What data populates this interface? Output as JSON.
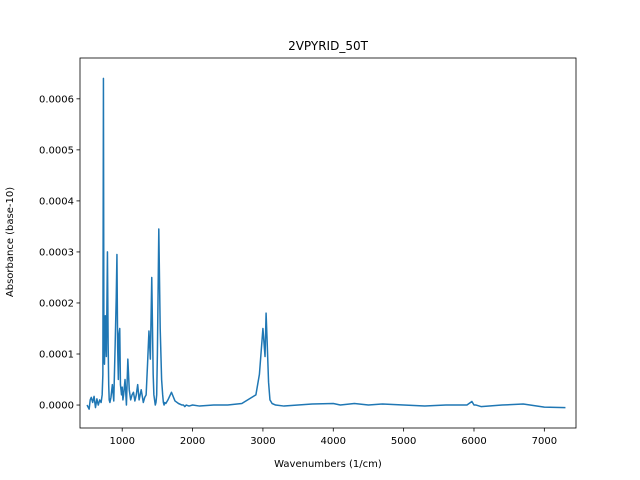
{
  "chart_data": {
    "type": "line",
    "title": "2VPYRID_50T",
    "xlabel": "Wavenumbers (1/cm)",
    "ylabel": "Absorbance (base-10)",
    "xlim": [
      400,
      7450
    ],
    "ylim": [
      -4.5e-05,
      0.00068
    ],
    "x_ticks": [
      1000,
      2000,
      3000,
      4000,
      5000,
      6000,
      7000
    ],
    "x_tick_labels": [
      "1000",
      "2000",
      "3000",
      "4000",
      "5000",
      "6000",
      "7000"
    ],
    "y_ticks": [
      0.0,
      0.0001,
      0.0002,
      0.0003,
      0.0004,
      0.0005,
      0.0006
    ],
    "y_tick_labels": [
      "0.0000",
      "0.0001",
      "0.0002",
      "0.0003",
      "0.0004",
      "0.0005",
      "0.0006"
    ],
    "grid": false,
    "line_color": "#1f77b4",
    "series": [
      {
        "x": [
          500,
          530,
          545,
          560,
          580,
          600,
          620,
          640,
          660,
          680,
          700,
          715,
          725,
          733,
          740,
          748,
          760,
          775,
          790,
          800,
          808,
          815,
          825,
          840,
          860,
          880,
          900,
          915,
          925,
          935,
          945,
          955,
          965,
          975,
          990,
          1000,
          1010,
          1020,
          1040,
          1060,
          1080,
          1100,
          1120,
          1140,
          1160,
          1180,
          1200,
          1220,
          1240,
          1270,
          1300,
          1320,
          1340,
          1360,
          1380,
          1400,
          1420,
          1440,
          1450,
          1460,
          1470,
          1480,
          1490,
          1500,
          1520,
          1540,
          1560,
          1575,
          1585,
          1595,
          1605,
          1620,
          1650,
          1700,
          1750,
          1800,
          1850,
          1870,
          1890,
          1910,
          1950,
          2000,
          2100,
          2300,
          2500,
          2700,
          2900,
          2950,
          3000,
          3030,
          3045,
          3060,
          3080,
          3100,
          3130,
          3180,
          3300,
          3500,
          3700,
          4000,
          4100,
          4300,
          4500,
          4700,
          5000,
          5300,
          5600,
          5900,
          5970,
          6000,
          6030,
          6100,
          6400,
          6700,
          7000,
          7300
        ],
        "y": [
          0.0,
          -8e-06,
          1e-05,
          1.5e-05,
          5e-06,
          1.7e-05,
          -5e-06,
          1.2e-05,
          0.0,
          1e-05,
          5e-06,
          2e-05,
          6e-05,
          0.00064,
          0.0001,
          8e-05,
          0.000175,
          9.5e-05,
          0.0003,
          0.00012,
          4e-05,
          1e-05,
          5e-06,
          1.5e-05,
          4e-05,
          8e-06,
          0.00012,
          0.00021,
          0.000295,
          0.000115,
          5e-05,
          0.00014,
          0.00015,
          4e-05,
          2e-05,
          3.5e-05,
          1e-05,
          2e-05,
          5e-05,
          0.0,
          9e-05,
          3e-05,
          1e-05,
          2e-05,
          2.5e-05,
          8e-06,
          2e-05,
          4e-05,
          1e-05,
          3e-05,
          5e-06,
          1.5e-05,
          2e-05,
          8e-05,
          0.000145,
          9e-05,
          0.00025,
          6e-05,
          2e-05,
          1e-05,
          0.0,
          5e-06,
          2e-05,
          0.0001,
          0.000345,
          0.00015,
          5e-05,
          2e-05,
          5e-06,
          0.0,
          5e-06,
          3e-06,
          1e-05,
          2.5e-05,
          8e-06,
          3e-06,
          0.0,
          0.0,
          -3e-06,
          0.0,
          -2e-06,
          0.0,
          -2e-06,
          0.0,
          0.0,
          3e-06,
          2e-05,
          6e-05,
          0.00015,
          9.5e-05,
          0.00018,
          0.000125,
          4.5e-05,
          1e-05,
          3e-06,
          0.0,
          -2e-06,
          0.0,
          2e-06,
          3e-06,
          0.0,
          3e-06,
          0.0,
          2e-06,
          0.0,
          -2e-06,
          0.0,
          0.0,
          7e-06,
          0.0,
          0.0,
          -3e-06,
          0.0,
          2e-06,
          -4e-06,
          -5e-06
        ]
      }
    ]
  }
}
